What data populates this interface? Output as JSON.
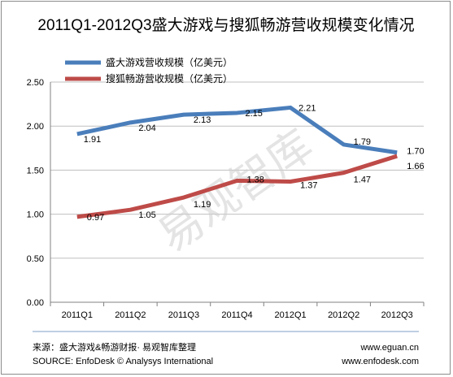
{
  "chart_data": {
    "type": "line",
    "title": "2011Q1-2012Q3盛大游戏与搜狐畅游营收规模变化情况",
    "categories": [
      "2011Q1",
      "2011Q2",
      "2011Q3",
      "2011Q4",
      "2012Q1",
      "2012Q2",
      "2012Q3"
    ],
    "ylim": [
      0,
      2.5
    ],
    "yticks": [
      "0.00",
      "0.50",
      "1.00",
      "1.50",
      "2.00",
      "2.50"
    ],
    "grid": true,
    "legend_position": "top-left",
    "series": [
      {
        "name": "盛大游戏营收规模（亿美元）",
        "color": "#4a7ebb",
        "values": [
          1.91,
          2.04,
          2.13,
          2.15,
          2.21,
          1.79,
          1.7
        ],
        "labels": [
          "1.91",
          "2.04",
          "2.13",
          "2.15",
          "2.21",
          "1.79",
          "1.70"
        ]
      },
      {
        "name": "搜狐畅游营收规模（亿美元）",
        "color": "#be4b48",
        "values": [
          0.97,
          1.05,
          1.19,
          1.38,
          1.37,
          1.47,
          1.66
        ],
        "labels": [
          "0.97",
          "1.05",
          "1.19",
          "1.38",
          "1.37",
          "1.47",
          "1.66"
        ]
      }
    ]
  },
  "watermark": "易观智库",
  "footer": {
    "source_cn": "来源：盛大游戏&畅游财报· 易观智库整理",
    "source_en": "SOURCE: EnfoDesk © Analysys International",
    "url1": "www.eguan.cn",
    "url2": "www.enfodesk.com"
  }
}
